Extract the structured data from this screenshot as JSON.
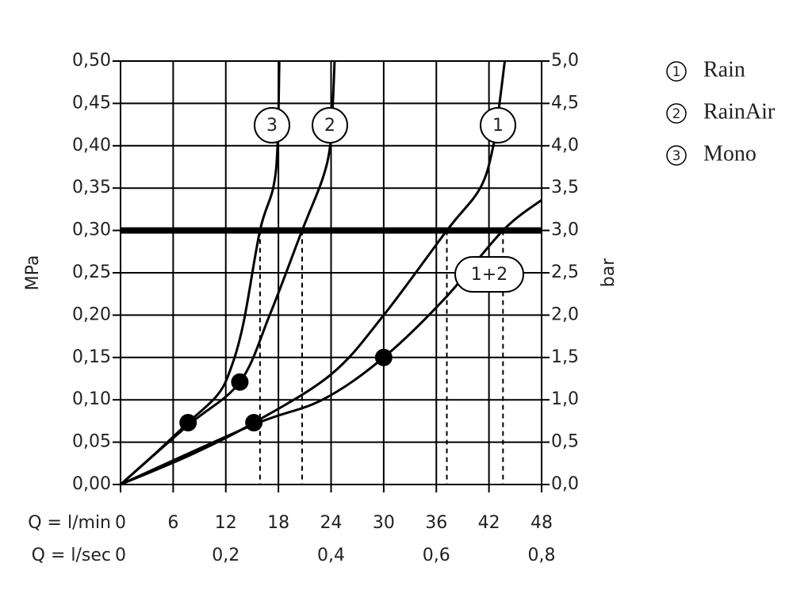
{
  "chart_data": {
    "type": "line",
    "y_label": "MPa",
    "y2_label": "bar",
    "x_label": "Q = l/min",
    "x2_label": "Q = l/sec",
    "xlim": [
      0,
      48
    ],
    "xticks": [
      0,
      6,
      12,
      18,
      24,
      30,
      36,
      42,
      48
    ],
    "x2lim": [
      0,
      0.8
    ],
    "x2ticks": [
      0,
      {
        "value": 0.2,
        "label": "0,2"
      },
      {
        "value": 0.4,
        "label": "0,4"
      },
      {
        "value": 0.6,
        "label": "0,6"
      },
      {
        "value": 0.8,
        "label": "0,8"
      }
    ],
    "ylim": [
      0,
      0.5
    ],
    "yticks": [
      {
        "value": 0,
        "label": "0,00"
      },
      {
        "value": 0.05,
        "label": "0,05"
      },
      {
        "value": 0.1,
        "label": "0,10"
      },
      {
        "value": 0.15,
        "label": "0,15"
      },
      {
        "value": 0.2,
        "label": "0,20"
      },
      {
        "value": 0.25,
        "label": "0,25"
      },
      {
        "value": 0.3,
        "label": "0,30"
      },
      {
        "value": 0.35,
        "label": "0,35"
      },
      {
        "value": 0.4,
        "label": "0,40"
      },
      {
        "value": 0.45,
        "label": "0,45"
      },
      {
        "value": 0.5,
        "label": "0,50"
      }
    ],
    "y2lim": [
      0,
      5
    ],
    "y2ticks": [
      {
        "value": 0,
        "label": "0,0"
      },
      {
        "value": 0.5,
        "label": "0,5"
      },
      {
        "value": 1,
        "label": "1,0"
      },
      {
        "value": 1.5,
        "label": "1,5"
      },
      {
        "value": 2,
        "label": "2,0"
      },
      {
        "value": 2.5,
        "label": "2,5"
      },
      {
        "value": 3,
        "label": "3,0"
      },
      {
        "value": 3.5,
        "label": "3,5"
      },
      {
        "value": 4,
        "label": "4,0"
      },
      {
        "value": 4.5,
        "label": "4,5"
      },
      {
        "value": 5,
        "label": "5,0"
      }
    ],
    "grid": true,
    "color": "#000000",
    "series": [
      {
        "name": "Rain",
        "label": "1",
        "x": [
          0,
          8,
          15.2,
          24,
          30,
          37.2,
          41,
          42.5,
          43.2,
          43.8
        ],
        "values": [
          0,
          0.035,
          0.073,
          0.13,
          0.2,
          0.3,
          0.35,
          0.4,
          0.45,
          0.5
        ]
      },
      {
        "name": "RainAir",
        "label": "2",
        "x": [
          0,
          7.7,
          13.6,
          17,
          20.7,
          23,
          23.9,
          24.2,
          24.4
        ],
        "values": [
          0,
          0.07,
          0.121,
          0.2,
          0.3,
          0.36,
          0.4,
          0.45,
          0.5
        ]
      },
      {
        "name": "Mono",
        "label": "3",
        "x": [
          0,
          4,
          7.7,
          11,
          12.5,
          14,
          15.9,
          17.4,
          17.9,
          18.1
        ],
        "values": [
          0,
          0.037,
          0.073,
          0.105,
          0.135,
          0.19,
          0.3,
          0.35,
          0.4,
          0.5
        ]
      },
      {
        "label": "1+2",
        "x": [
          0,
          15,
          23,
          30,
          37,
          43.6,
          48
        ],
        "values": [
          0,
          0.07,
          0.1,
          0.15,
          0.22,
          0.3,
          0.336
        ]
      }
    ],
    "points": {
      "x": [
        7.7,
        13.6,
        15.2,
        30
      ],
      "values": [
        0.073,
        0.121,
        0.073,
        0.15
      ]
    },
    "limit_y": 0.3,
    "limit_x": [
      15.9,
      20.7,
      37.2,
      43.6
    ]
  }
}
